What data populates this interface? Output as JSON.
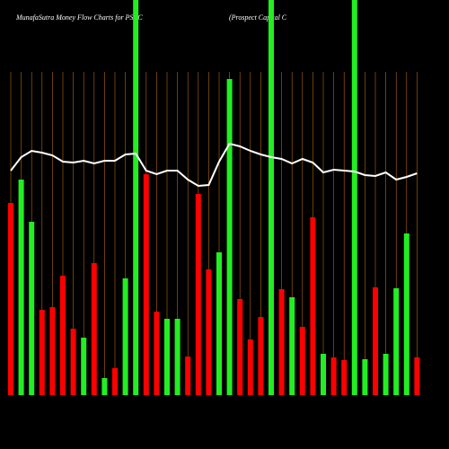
{
  "chart_data": {
    "type": "bar",
    "title": "MunafaSutra  Money Flow  Charts for PSEC",
    "subtitle": "(Prospect Capital C",
    "categories": [
      null,
      null,
      null,
      null,
      null,
      null,
      null,
      null,
      null,
      null,
      null,
      null,
      null,
      null,
      null,
      null,
      null,
      null,
      null,
      null,
      null,
      null,
      null,
      null,
      null,
      null,
      null,
      null,
      null,
      null,
      null,
      null,
      null,
      null,
      null,
      null,
      null,
      null,
      null,
      null
    ],
    "values": [
      214,
      240,
      193,
      95,
      98,
      133,
      74,
      64,
      147,
      19,
      30,
      130,
      440,
      246,
      93,
      85,
      85,
      43,
      224,
      140,
      159,
      352,
      107,
      62,
      87,
      440,
      118,
      109,
      76,
      198,
      46,
      42,
      39,
      440,
      40,
      120,
      46,
      119,
      180,
      42
    ],
    "colors": [
      "#ff0000",
      "#22ee22",
      "#22ee22",
      "#ff0000",
      "#ff0000",
      "#ff0000",
      "#ff0000",
      "#22ee22",
      "#ff0000",
      "#22ee22",
      "#ff0000",
      "#22ee22",
      "#22ee22",
      "#ff0000",
      "#ff0000",
      "#22ee22",
      "#22ee22",
      "#ff0000",
      "#ff0000",
      "#ff0000",
      "#22ee22",
      "#22ee22",
      "#ff0000",
      "#ff0000",
      "#ff0000",
      "#22ee22",
      "#ff0000",
      "#22ee22",
      "#ff0000",
      "#ff0000",
      "#22ee22",
      "#ff0000",
      "#ff0000",
      "#22ee22",
      "#22ee22",
      "#ff0000",
      "#22ee22",
      "#22ee22",
      "#22ee22",
      "#ff0000"
    ],
    "line": {
      "color": "#ffffff",
      "values": [
        250,
        265,
        272,
        270,
        267,
        260,
        259,
        261,
        258,
        261,
        261,
        268,
        269,
        250,
        246,
        250,
        250,
        240,
        233,
        234,
        260,
        280,
        277,
        272,
        268,
        265,
        263,
        258,
        263,
        259,
        248,
        251,
        250,
        249,
        245,
        244,
        248,
        240,
        243,
        247
      ]
    },
    "ylim": [
      0,
      440
    ],
    "grid": true,
    "grid_color": "#b8690a"
  }
}
